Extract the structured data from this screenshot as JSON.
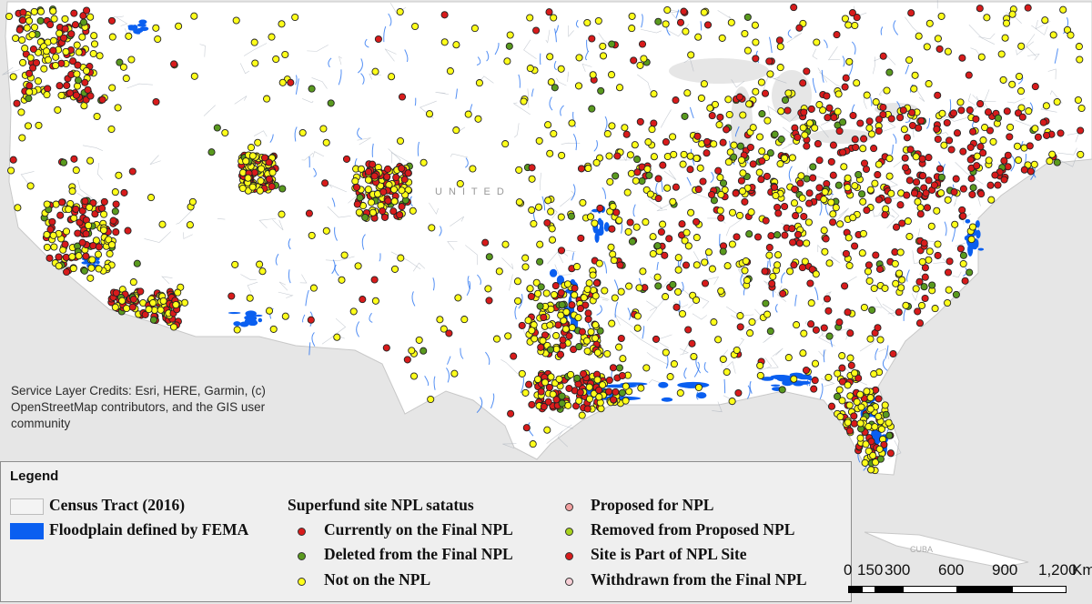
{
  "map": {
    "country_label": "U N I T E D",
    "cuba_label": "CUBA",
    "credits": "Service Layer Credits: Esri, HERE, Garmin, (c) OpenStreetMap contributors, and the GIS user community",
    "colors": {
      "background": "#e6e6e6",
      "land": "#ffffff",
      "tract_border": "#9aa4b0",
      "floodplain": "#0a5ff0",
      "currently_final": "#d81b1b",
      "deleted_final": "#5a9a1e",
      "not_npl": "#ffff1a",
      "proposed": "#f2a0a0",
      "removed_proposed": "#a8d31c",
      "part_of_site": "#d81b1b",
      "withdrawn": "#f7cfd6"
    }
  },
  "legend": {
    "title": "Legend",
    "census_tract": "Census Tract (2016)",
    "floodplain": "Floodplain defined by FEMA",
    "status_heading": "Superfund site NPL satatus",
    "items_left": [
      {
        "label": "Currently on the Final NPL",
        "color": "#d81b1b"
      },
      {
        "label": "Deleted from the Final NPL",
        "color": "#5a9a1e"
      },
      {
        "label": "Not on the NPL",
        "color": "#ffff1a"
      }
    ],
    "items_right": [
      {
        "label": "Proposed for NPL",
        "color": "#f2a0a0"
      },
      {
        "label": "Removed from Proposed NPL",
        "color": "#a8d31c"
      },
      {
        "label": "Site is Part of NPL Site",
        "color": "#d81b1b"
      },
      {
        "label": "Withdrawn from the Final NPL",
        "color": "#f7cfd6"
      }
    ]
  },
  "scale_bar": {
    "labels": [
      "0",
      "150",
      "300",
      "600",
      "900",
      "1,200"
    ],
    "unit": "Km"
  }
}
